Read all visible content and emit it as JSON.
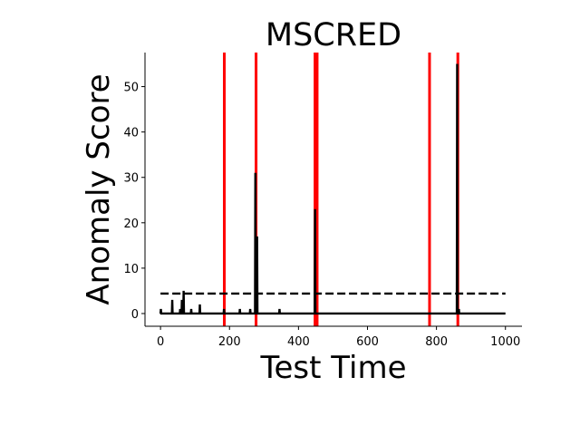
{
  "chart_data": {
    "type": "line",
    "title": "MSCRED",
    "xlabel": "Test Time",
    "ylabel": "Anomaly Score",
    "xlim": [
      -45,
      1048
    ],
    "ylim": [
      -2.8,
      57.5
    ],
    "x_ticks": [
      0,
      200,
      400,
      600,
      800,
      1000
    ],
    "y_ticks": [
      0,
      10,
      20,
      30,
      40,
      50
    ],
    "grid": false,
    "legend": "none",
    "threshold": 4.4,
    "series": [
      {
        "color": "#000000",
        "points": [
          [
            0,
            0
          ],
          [
            1,
            1
          ],
          [
            2,
            0
          ],
          [
            33,
            0
          ],
          [
            34,
            3
          ],
          [
            35,
            0
          ],
          [
            56,
            0
          ],
          [
            57,
            1
          ],
          [
            58,
            0
          ],
          [
            61,
            0
          ],
          [
            62,
            3
          ],
          [
            63,
            0
          ],
          [
            66,
            0
          ],
          [
            67,
            5
          ],
          [
            68,
            0
          ],
          [
            88,
            0
          ],
          [
            89,
            1
          ],
          [
            90,
            0
          ],
          [
            113,
            0
          ],
          [
            114,
            2
          ],
          [
            115,
            0
          ],
          [
            183,
            0
          ],
          [
            184,
            1
          ],
          [
            185,
            0
          ],
          [
            229,
            0
          ],
          [
            230,
            1
          ],
          [
            231,
            0
          ],
          [
            259,
            0
          ],
          [
            260,
            1
          ],
          [
            261,
            0
          ],
          [
            274,
            0
          ],
          [
            275,
            31
          ],
          [
            276,
            0
          ],
          [
            279,
            0
          ],
          [
            280,
            17
          ],
          [
            281,
            0
          ],
          [
            344,
            0
          ],
          [
            345,
            1
          ],
          [
            346,
            0
          ],
          [
            447,
            0
          ],
          [
            448,
            23
          ],
          [
            449,
            0
          ],
          [
            859,
            0
          ],
          [
            860,
            55
          ],
          [
            861,
            0
          ],
          [
            864,
            0
          ],
          [
            865,
            1
          ],
          [
            866,
            0
          ],
          [
            1000,
            0
          ]
        ]
      }
    ],
    "anomaly_regions": [
      [
        181,
        185
      ],
      [
        273,
        281
      ],
      [
        444,
        458
      ],
      [
        776,
        782
      ],
      [
        858,
        866
      ]
    ],
    "colors": {
      "line": "#000000",
      "threshold": "#000000",
      "anomaly": "#ff0000"
    }
  }
}
